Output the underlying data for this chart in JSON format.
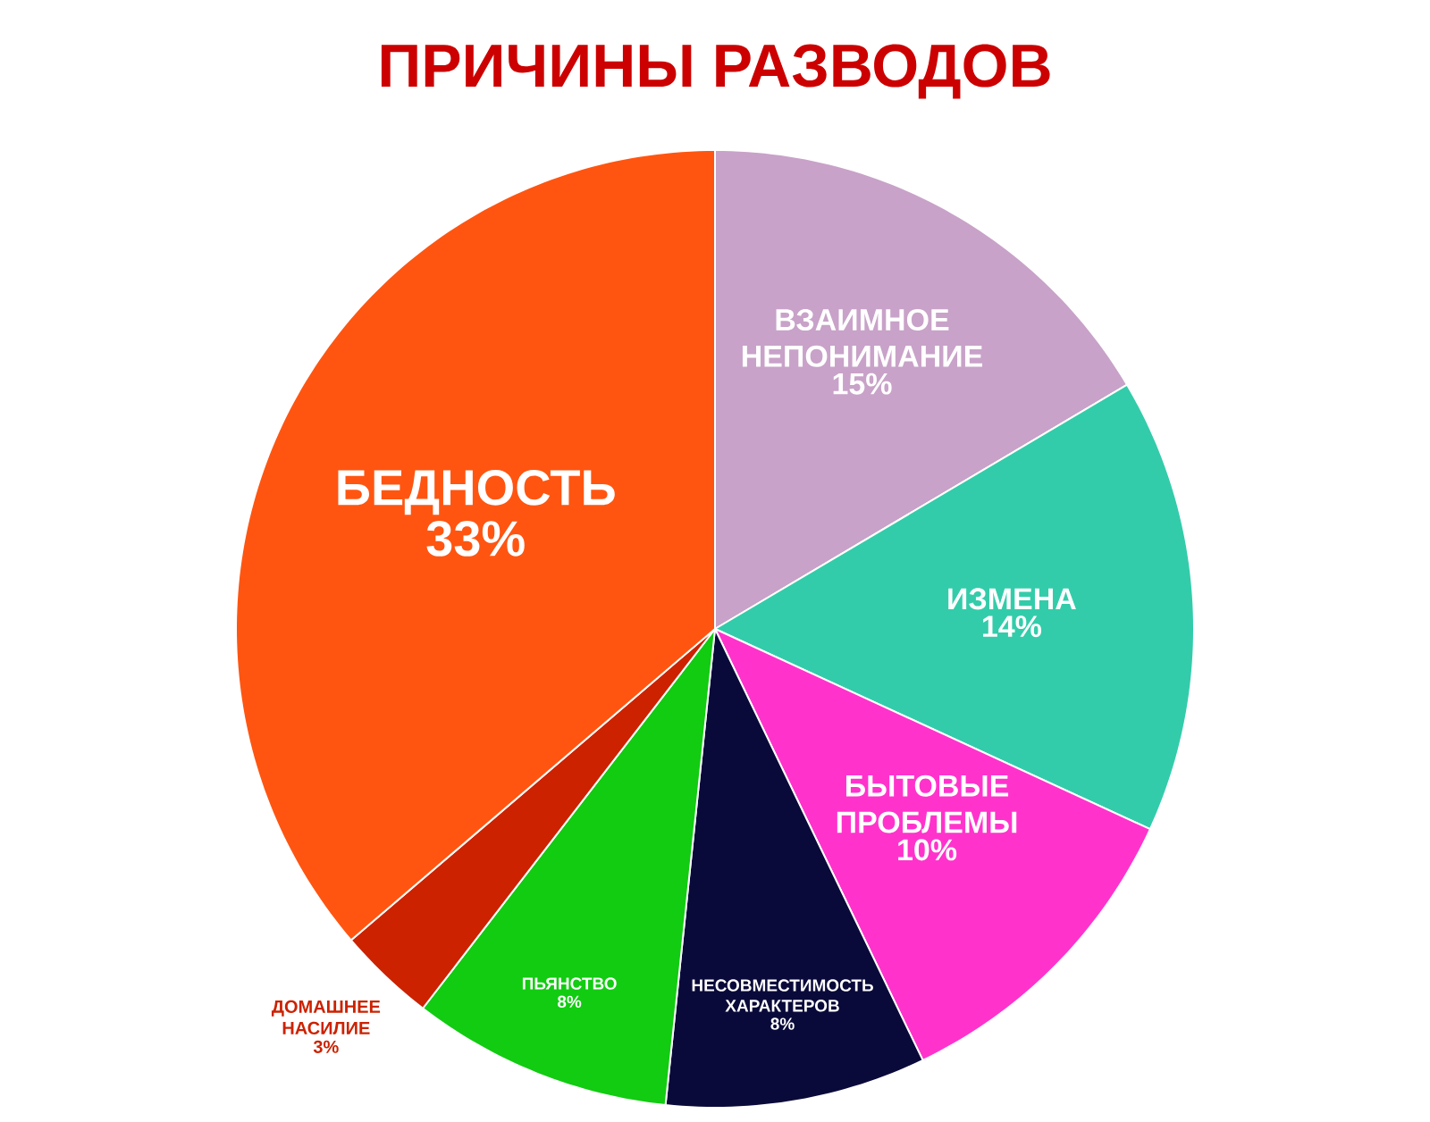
{
  "chart_data": {
    "type": "pie",
    "title": "ПРИЧИНЫ РАЗВОДОВ",
    "categories": [
      "ВЗАИМНОЕ НЕПОНИМАНИЕ",
      "ИЗМЕНА",
      "БЫТОВЫЕ ПРОБЛЕМЫ",
      "НЕСОВМЕСТИМОСТЬ ХАРАКТЕРОВ",
      "ПЬЯНСТВО",
      "ДОМАШНЕЕ НАСИЛИЕ",
      "БЕДНОСТЬ"
    ],
    "values": [
      15,
      14,
      10,
      8,
      8,
      3,
      33
    ],
    "value_labels": [
      "15%",
      "14%",
      "10%",
      "8%",
      "8%",
      "3%",
      "33%"
    ],
    "colors": [
      "#c8a2c8",
      "#33ccaa",
      "#ff33cc",
      "#0a0a3a",
      "#11cc11",
      "#cc2200",
      "#ff5511"
    ]
  }
}
